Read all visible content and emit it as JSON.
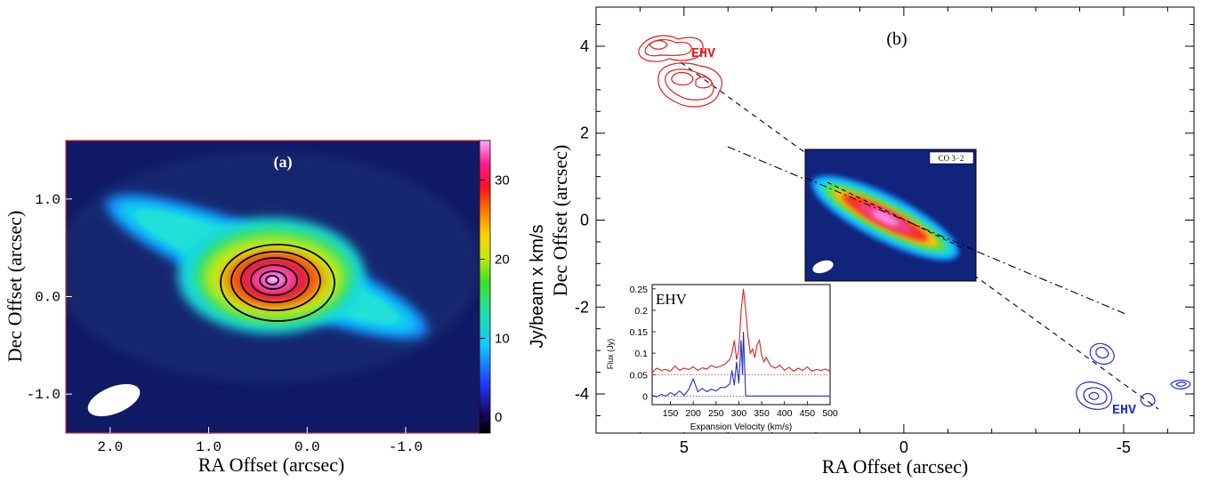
{
  "chart_data": [
    {
      "type": "heatmap",
      "panel_label": "(a)",
      "xlabel": "RA Offset (arcsec)",
      "ylabel": "Dec Offset (arcsec)",
      "xticks": [
        "2.0",
        "1.0",
        "0.0",
        "-1.0"
      ],
      "yticks": [
        "1.0",
        "0.0",
        "-1.0"
      ],
      "xlim": [
        2.45,
        -1.75
      ],
      "ylim": [
        -1.4,
        1.6
      ],
      "colorbar": {
        "label": "Jy/beam x km/s",
        "ticks": [
          "0",
          "10",
          "20",
          "30"
        ],
        "range": [
          -2,
          35
        ]
      },
      "contours": {
        "center": [
          0.3,
          0.15
        ],
        "levels": 6
      }
    },
    {
      "type": "scatter",
      "panel_label": "(b)",
      "xlabel": "RA Offset (arcsec)",
      "ylabel": "Dec Offset (arcsec)",
      "xticks": [
        "5",
        "0",
        "-5"
      ],
      "yticks": [
        "4",
        "2",
        "0",
        "-2",
        "-4"
      ],
      "xlim": [
        7,
        -6.6
      ],
      "ylim": [
        -4.9,
        4.9
      ],
      "annotations": {
        "ehv_red": "EHV",
        "ehv_blue": "EHV",
        "inset_image": "CO 3−2"
      },
      "colors": {
        "red": "#e02020",
        "blue": "#2030d0"
      },
      "red_lobe_peaks": [
        [
          5.9,
          4.1
        ],
        [
          4.8,
          3.3
        ],
        [
          5.6,
          3.4
        ]
      ],
      "blue_lobe_peaks": [
        [
          -4.5,
          -4.0
        ],
        [
          -4.7,
          -2.9
        ],
        [
          -6.1,
          -4.2
        ],
        [
          -6.3,
          -3.8
        ]
      ],
      "inset_spectrum": {
        "type": "line",
        "label": "EHV",
        "xlabel": "Expansion Velocity (km/s)",
        "ylabel": "Flux (Jy)",
        "xticks": [
          "150",
          "200",
          "250",
          "300",
          "350",
          "400",
          "450",
          "500"
        ],
        "yticks": [
          "0",
          "0.05",
          "0.1",
          "0.15",
          "0.2",
          "0.25"
        ],
        "xlim": [
          110,
          500
        ],
        "ylim": [
          -0.02,
          0.26
        ],
        "series": [
          {
            "color": "red",
            "x": [
              110,
              120,
              130,
              140,
              150,
              160,
              170,
              180,
              190,
              200,
              210,
              220,
              230,
              240,
              250,
              260,
              270,
              280,
              285,
              290,
              295,
              300,
              305,
              310,
              315,
              320,
              325,
              330,
              335,
              340,
              345,
              350,
              355,
              360,
              370,
              380,
              390,
              400,
              410,
              420,
              430,
              440,
              450,
              460,
              470,
              480,
              490,
              500
            ],
            "y": [
              0.055,
              0.065,
              0.06,
              0.062,
              0.058,
              0.07,
              0.06,
              0.065,
              0.062,
              0.068,
              0.06,
              0.066,
              0.063,
              0.072,
              0.066,
              0.07,
              0.075,
              0.085,
              0.1,
              0.13,
              0.085,
              0.11,
              0.2,
              0.25,
              0.2,
              0.14,
              0.1,
              0.11,
              0.09,
              0.12,
              0.13,
              0.095,
              0.08,
              0.09,
              0.07,
              0.065,
              0.072,
              0.06,
              0.067,
              0.058,
              0.065,
              0.06,
              0.068,
              0.058,
              0.062,
              0.06,
              0.063,
              0.058
            ]
          },
          {
            "color": "blue",
            "x": [
              110,
              120,
              130,
              140,
              150,
              160,
              170,
              180,
              190,
              200,
              210,
              220,
              230,
              240,
              250,
              260,
              270,
              280,
              285,
              290,
              295,
              300,
              303,
              305,
              308,
              310,
              315,
              320,
              330,
              350,
              400,
              450,
              500
            ],
            "y": [
              0.002,
              -0.002,
              0.004,
              0.0,
              0.008,
              0.002,
              0.012,
              0.002,
              0.015,
              0.04,
              0.01,
              0.018,
              0.01,
              0.016,
              0.012,
              0.02,
              0.02,
              0.028,
              0.06,
              0.025,
              0.08,
              0.03,
              0.09,
              0.13,
              0.05,
              0.15,
              0.0,
              0.0,
              0.0,
              0.0,
              0.0,
              0.0,
              0.0
            ]
          }
        ]
      }
    }
  ]
}
